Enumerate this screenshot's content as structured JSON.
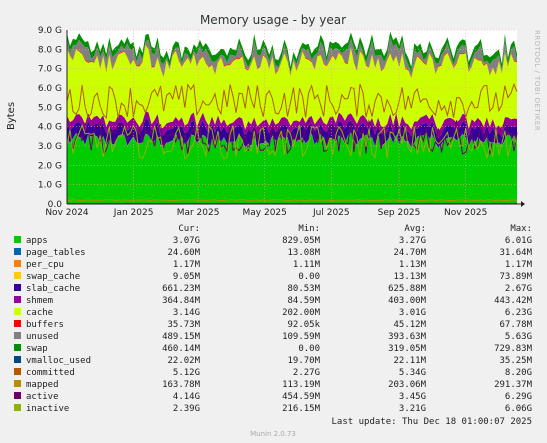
{
  "chart_data": {
    "type": "area",
    "title": "Memory usage - by year",
    "ylabel": "Bytes",
    "ylim": [
      0,
      9.0
    ],
    "y_ticks": [
      "0.0",
      "1.0 G",
      "2.0 G",
      "3.0 G",
      "4.0 G",
      "5.0 G",
      "6.0 G",
      "7.0 G",
      "8.0 G",
      "9.0 G"
    ],
    "x_ticks": [
      {
        "label": "Nov 2024",
        "date": "2024-11-01"
      },
      {
        "label": "Jan 2025",
        "date": "2025-01-01"
      },
      {
        "label": "Mar 2025",
        "date": "2025-03-01"
      },
      {
        "label": "May 2025",
        "date": "2025-05-01"
      },
      {
        "label": "Jul 2025",
        "date": "2025-07-01"
      },
      {
        "label": "Sep 2025",
        "date": "2025-09-01"
      },
      {
        "label": "Nov 2025",
        "date": "2025-11-01"
      }
    ],
    "x_range": [
      "2024-11-01",
      "2025-12-18"
    ],
    "side_label": "RRDTOOL / TOBI OETIKER",
    "grid": true,
    "column_headers": [
      "Cur:",
      "Min:",
      "Avg:",
      "Max:"
    ],
    "series": [
      {
        "name": "apps",
        "color": "#00cc00",
        "kind": "stack",
        "cur": "3.07G",
        "min": "829.05M",
        "avg": "3.27G",
        "max": "6.01G"
      },
      {
        "name": "page_tables",
        "color": "#0066b3",
        "kind": "stack",
        "cur": "24.60M",
        "min": "13.08M",
        "avg": "24.70M",
        "max": "31.64M"
      },
      {
        "name": "per_cpu",
        "color": "#ff8000",
        "kind": "stack",
        "cur": "1.17M",
        "min": "1.11M",
        "avg": "1.13M",
        "max": "1.17M"
      },
      {
        "name": "swap_cache",
        "color": "#ffcc00",
        "kind": "stack",
        "cur": "9.05M",
        "min": "0.00",
        "avg": "13.13M",
        "max": "73.89M"
      },
      {
        "name": "slab_cache",
        "color": "#330099",
        "kind": "stack",
        "cur": "661.23M",
        "min": "80.53M",
        "avg": "625.88M",
        "max": "2.67G"
      },
      {
        "name": "shmem",
        "color": "#990099",
        "kind": "stack",
        "cur": "364.84M",
        "min": "84.59M",
        "avg": "403.00M",
        "max": "443.42M"
      },
      {
        "name": "cache",
        "color": "#ccff00",
        "kind": "stack",
        "cur": "3.14G",
        "min": "202.00M",
        "avg": "3.01G",
        "max": "6.23G"
      },
      {
        "name": "buffers",
        "color": "#ff0000",
        "kind": "stack",
        "cur": "35.73M",
        "min": "92.05k",
        "avg": "45.12M",
        "max": "67.78M"
      },
      {
        "name": "unused",
        "color": "#808080",
        "kind": "stack",
        "cur": "489.15M",
        "min": "109.59M",
        "avg": "393.63M",
        "max": "5.63G"
      },
      {
        "name": "swap",
        "color": "#008f00",
        "kind": "stack",
        "cur": "460.14M",
        "min": "0.00",
        "avg": "319.05M",
        "max": "729.83M"
      },
      {
        "name": "vmalloc_used",
        "color": "#00487d",
        "kind": "line",
        "cur": "22.02M",
        "min": "19.70M",
        "avg": "22.11M",
        "max": "35.25M"
      },
      {
        "name": "committed",
        "color": "#b35a00",
        "kind": "line",
        "cur": "5.12G",
        "min": "2.27G",
        "avg": "5.34G",
        "max": "8.20G"
      },
      {
        "name": "mapped",
        "color": "#b38f00",
        "kind": "line",
        "cur": "163.78M",
        "min": "113.19M",
        "avg": "203.06M",
        "max": "291.37M"
      },
      {
        "name": "active",
        "color": "#6b006b",
        "kind": "line",
        "cur": "4.14G",
        "min": "454.59M",
        "avg": "3.45G",
        "max": "6.29G"
      },
      {
        "name": "inactive",
        "color": "#8fb300",
        "kind": "line",
        "cur": "2.39G",
        "min": "216.15M",
        "avg": "3.21G",
        "max": "6.06G"
      }
    ],
    "last_update": "Last update: Thu Dec 18 01:00:07 2025",
    "footer": "Munin 2.0.73"
  }
}
